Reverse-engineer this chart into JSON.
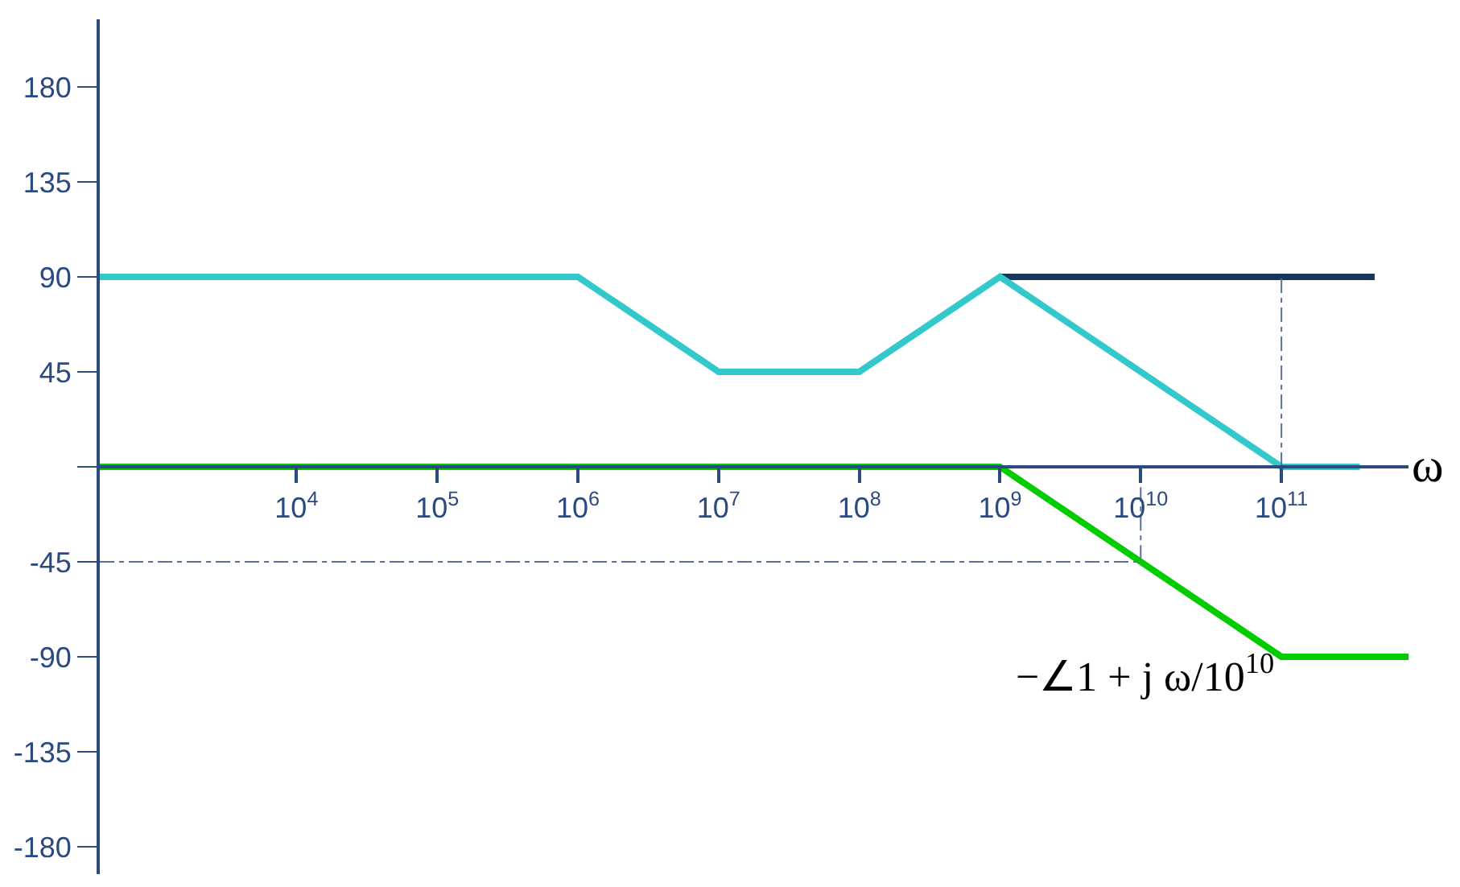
{
  "chart_data": {
    "type": "line",
    "xlabel": "ω",
    "log": "x",
    "xlim": [
      400,
      800000000000
    ],
    "ylim": [
      -193,
      212
    ],
    "xticks": [
      {
        "value": 10000,
        "label": "10$^{4}$"
      },
      {
        "value": 100000,
        "label": "10$^{5}$"
      },
      {
        "value": 1000000,
        "label": "10$^{6}$"
      },
      {
        "value": 10000000,
        "label": "10$^{7}$"
      },
      {
        "value": 100000000,
        "label": "10$^{8}$"
      },
      {
        "value": 1000000000,
        "label": "10$^{9}$"
      },
      {
        "value": 10000000000,
        "label": "10$^{10}$"
      },
      {
        "value": 100000000000,
        "label": "10$^{11}$"
      }
    ],
    "yticks": [
      180,
      135,
      90,
      45,
      {
        "value": 0,
        "label": null
      },
      -45,
      -90,
      -135,
      -180
    ],
    "marker": "none",
    "series": [
      {
        "color": "#17365d",
        "x": [
          1000000000,
          460000000000
        ],
        "values": [
          90,
          90
        ]
      },
      {
        "color": "#33c9cc",
        "x": [
          400,
          1000000,
          10000000,
          100000000,
          1000000000,
          100000000000,
          360000000000
        ],
        "values": [
          90,
          90,
          45,
          45,
          90,
          0,
          0
        ]
      },
      {
        "color": "#00cc00",
        "x": [
          400,
          1000000000,
          100000000000,
          800000000000
        ],
        "values": [
          0,
          0,
          -90,
          -90
        ]
      },
      {
        "color": "#5a7099",
        "line_style": "dashed",
        "x": [
          400,
          10000000000,
          10000000000
        ],
        "values": [
          -45,
          -45,
          0
        ]
      },
      {
        "color": "#5a7099",
        "line_style": "dashed",
        "x": [
          100000000000,
          100000000000
        ],
        "values": [
          0,
          90
        ]
      }
    ],
    "annotations": [
      "−∠1 + j ω/10$^{10}$"
    ]
  }
}
